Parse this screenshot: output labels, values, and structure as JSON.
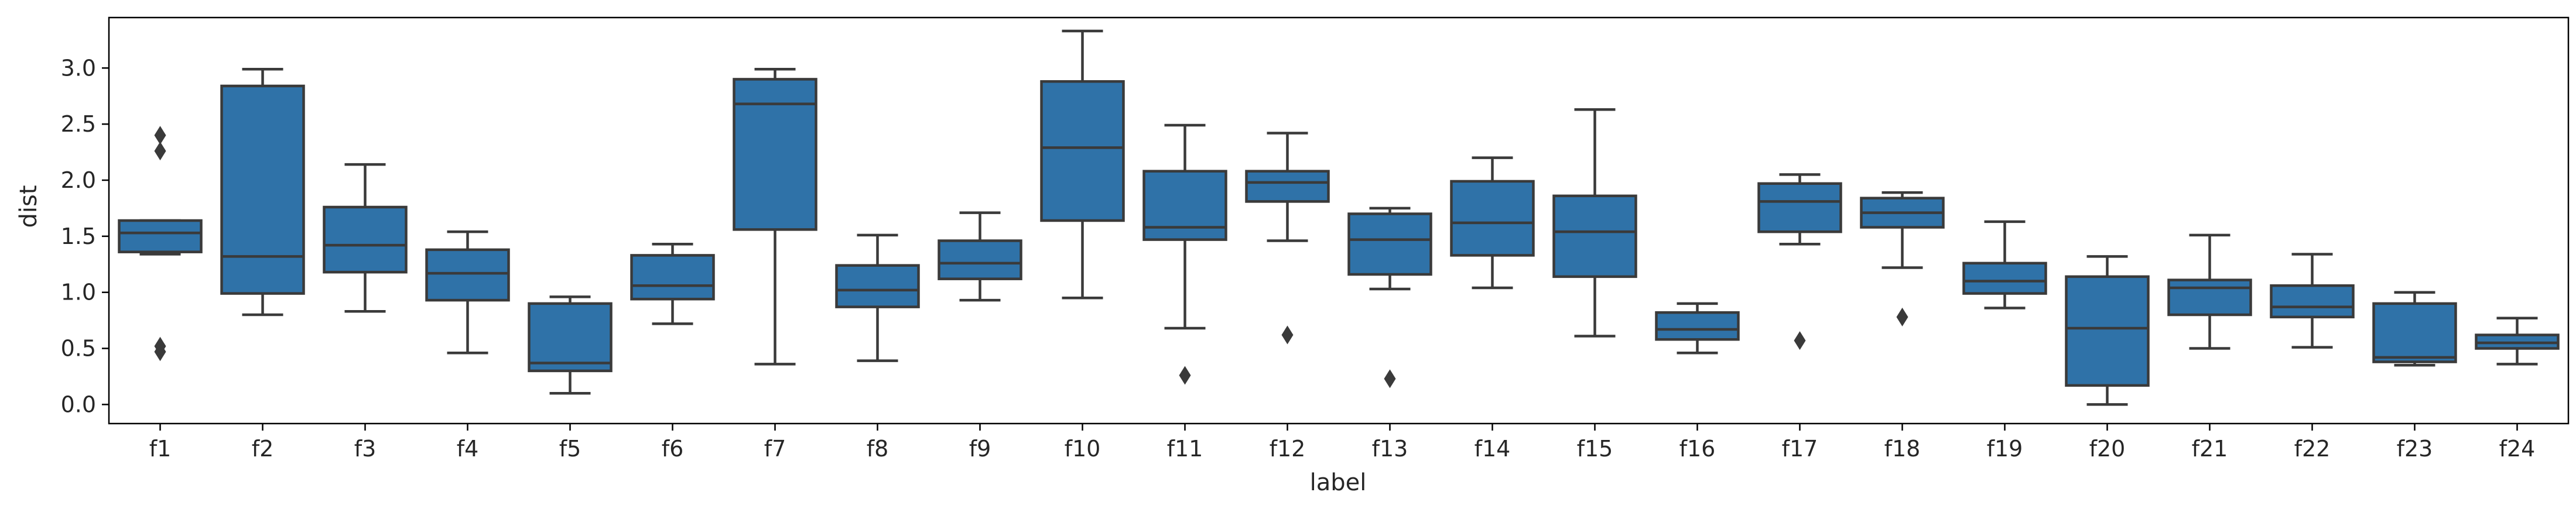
{
  "chart_data": {
    "type": "box",
    "xlabel": "label",
    "ylabel": "dist",
    "ylim": [
      -0.17,
      3.45
    ],
    "yticks": [
      0.0,
      0.5,
      1.0,
      1.5,
      2.0,
      2.5,
      3.0
    ],
    "ytick_labels": [
      "0.0",
      "0.5",
      "1.0",
      "1.5",
      "2.0",
      "2.5",
      "3.0"
    ],
    "grid": false,
    "box_color": "#2f72a8",
    "line_color": "#3a3a3a",
    "categories": [
      "f1",
      "f2",
      "f3",
      "f4",
      "f5",
      "f6",
      "f7",
      "f8",
      "f9",
      "f10",
      "f11",
      "f12",
      "f13",
      "f14",
      "f15",
      "f16",
      "f17",
      "f18",
      "f19",
      "f20",
      "f21",
      "f22",
      "f23",
      "f24"
    ],
    "boxes": [
      {
        "label": "f1",
        "whisker_low": 1.34,
        "q1": 1.36,
        "median": 1.53,
        "q3": 1.64,
        "whisker_high": 1.64,
        "outliers": [
          2.4,
          2.26,
          0.52,
          0.47
        ]
      },
      {
        "label": "f2",
        "whisker_low": 0.8,
        "q1": 0.99,
        "median": 1.32,
        "q3": 2.84,
        "whisker_high": 2.99,
        "outliers": []
      },
      {
        "label": "f3",
        "whisker_low": 0.83,
        "q1": 1.18,
        "median": 1.42,
        "q3": 1.76,
        "whisker_high": 2.14,
        "outliers": []
      },
      {
        "label": "f4",
        "whisker_low": 0.46,
        "q1": 0.93,
        "median": 1.17,
        "q3": 1.38,
        "whisker_high": 1.54,
        "outliers": []
      },
      {
        "label": "f5",
        "whisker_low": 0.1,
        "q1": 0.3,
        "median": 0.37,
        "q3": 0.9,
        "whisker_high": 0.96,
        "outliers": []
      },
      {
        "label": "f6",
        "whisker_low": 0.72,
        "q1": 0.94,
        "median": 1.06,
        "q3": 1.33,
        "whisker_high": 1.43,
        "outliers": []
      },
      {
        "label": "f7",
        "whisker_low": 0.36,
        "q1": 1.56,
        "median": 2.68,
        "q3": 2.9,
        "whisker_high": 2.99,
        "outliers": []
      },
      {
        "label": "f8",
        "whisker_low": 0.39,
        "q1": 0.87,
        "median": 1.02,
        "q3": 1.24,
        "whisker_high": 1.51,
        "outliers": []
      },
      {
        "label": "f9",
        "whisker_low": 0.93,
        "q1": 1.12,
        "median": 1.26,
        "q3": 1.46,
        "whisker_high": 1.71,
        "outliers": []
      },
      {
        "label": "f10",
        "whisker_low": 0.95,
        "q1": 1.64,
        "median": 2.29,
        "q3": 2.88,
        "whisker_high": 3.33,
        "outliers": []
      },
      {
        "label": "f11",
        "whisker_low": 0.68,
        "q1": 1.47,
        "median": 1.58,
        "q3": 2.08,
        "whisker_high": 2.49,
        "outliers": [
          0.26
        ]
      },
      {
        "label": "f12",
        "whisker_low": 1.46,
        "q1": 1.81,
        "median": 1.98,
        "q3": 2.08,
        "whisker_high": 2.42,
        "outliers": [
          0.62
        ]
      },
      {
        "label": "f13",
        "whisker_low": 1.03,
        "q1": 1.16,
        "median": 1.47,
        "q3": 1.7,
        "whisker_high": 1.75,
        "outliers": [
          0.23
        ]
      },
      {
        "label": "f14",
        "whisker_low": 1.04,
        "q1": 1.33,
        "median": 1.62,
        "q3": 1.99,
        "whisker_high": 2.2,
        "outliers": []
      },
      {
        "label": "f15",
        "whisker_low": 0.61,
        "q1": 1.14,
        "median": 1.54,
        "q3": 1.86,
        "whisker_high": 2.63,
        "outliers": []
      },
      {
        "label": "f16",
        "whisker_low": 0.46,
        "q1": 0.58,
        "median": 0.67,
        "q3": 0.82,
        "whisker_high": 0.9,
        "outliers": []
      },
      {
        "label": "f17",
        "whisker_low": 1.43,
        "q1": 1.54,
        "median": 1.81,
        "q3": 1.97,
        "whisker_high": 2.05,
        "outliers": [
          0.57
        ]
      },
      {
        "label": "f18",
        "whisker_low": 1.22,
        "q1": 1.58,
        "median": 1.71,
        "q3": 1.84,
        "whisker_high": 1.89,
        "outliers": [
          0.78
        ]
      },
      {
        "label": "f19",
        "whisker_low": 0.86,
        "q1": 0.99,
        "median": 1.1,
        "q3": 1.26,
        "whisker_high": 1.63,
        "outliers": []
      },
      {
        "label": "f20",
        "whisker_low": 0.0,
        "q1": 0.17,
        "median": 0.68,
        "q3": 1.14,
        "whisker_high": 1.32,
        "outliers": []
      },
      {
        "label": "f21",
        "whisker_low": 0.5,
        "q1": 0.8,
        "median": 1.04,
        "q3": 1.11,
        "whisker_high": 1.51,
        "outliers": []
      },
      {
        "label": "f22",
        "whisker_low": 0.51,
        "q1": 0.78,
        "median": 0.87,
        "q3": 1.06,
        "whisker_high": 1.34,
        "outliers": []
      },
      {
        "label": "f23",
        "whisker_low": 0.35,
        "q1": 0.38,
        "median": 0.42,
        "q3": 0.9,
        "whisker_high": 1.0,
        "outliers": []
      },
      {
        "label": "f24",
        "whisker_low": 0.36,
        "q1": 0.5,
        "median": 0.55,
        "q3": 0.62,
        "whisker_high": 0.77,
        "outliers": []
      }
    ]
  }
}
